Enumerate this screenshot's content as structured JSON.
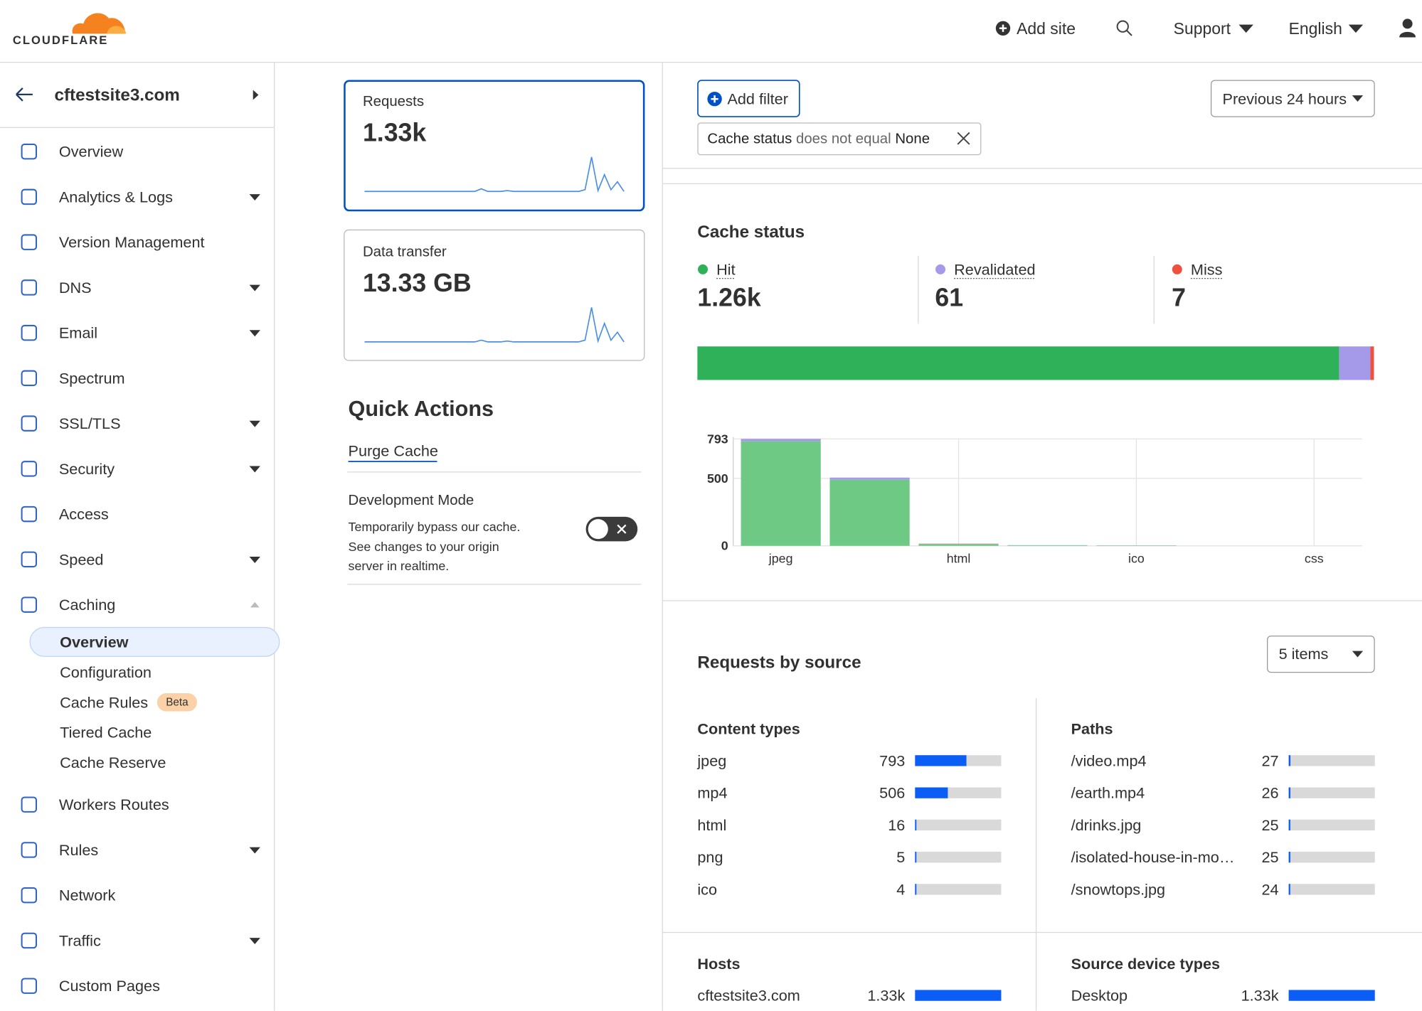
{
  "header": {
    "brand": "CLOUDFLARE",
    "nav": [
      "Add site",
      "Support",
      "English"
    ]
  },
  "sidebar": {
    "site": "cftestsite3.com",
    "items": [
      {
        "label": "Overview"
      },
      {
        "label": "Analytics & Logs",
        "menu": true
      },
      {
        "label": "Version Management"
      },
      {
        "label": "DNS",
        "menu": true
      },
      {
        "label": "Email",
        "menu": true
      },
      {
        "label": "Spectrum"
      },
      {
        "label": "SSL/TLS",
        "menu": true
      },
      {
        "label": "Security",
        "menu": true
      },
      {
        "label": "Access"
      },
      {
        "label": "Speed",
        "menu": true
      },
      {
        "label": "Caching",
        "menu": true,
        "open": true,
        "children": [
          {
            "label": "Overview",
            "active": true
          },
          {
            "label": "Configuration"
          },
          {
            "label": "Cache Rules",
            "badge": "Beta"
          },
          {
            "label": "Tiered Cache"
          },
          {
            "label": "Cache Reserve"
          }
        ]
      },
      {
        "label": "Workers Routes"
      },
      {
        "label": "Rules",
        "menu": true
      },
      {
        "label": "Network"
      },
      {
        "label": "Traffic",
        "menu": true
      },
      {
        "label": "Custom Pages"
      }
    ]
  },
  "metrics": [
    {
      "label": "Requests",
      "value": "1.33k",
      "selected": true,
      "sparkline": [
        1,
        1,
        1,
        1,
        1,
        1,
        1,
        1,
        1,
        1,
        1,
        1,
        1,
        1,
        1,
        1,
        1,
        1,
        4,
        1,
        1,
        1,
        2,
        1,
        1,
        1,
        1,
        1,
        1,
        1,
        1,
        1,
        1,
        1,
        3,
        40,
        2,
        20,
        3,
        12,
        1
      ]
    },
    {
      "label": "Data transfer",
      "value": "13.33 GB",
      "selected": false,
      "sparkline": [
        1,
        1,
        1,
        1,
        1,
        1,
        1,
        1,
        1,
        1,
        1,
        1,
        1,
        1,
        1,
        1,
        1,
        1,
        3,
        1,
        1,
        1,
        2,
        1,
        1,
        1,
        1,
        1,
        1,
        1,
        1,
        1,
        1,
        1,
        3,
        40,
        2,
        22,
        3,
        12,
        1
      ]
    }
  ],
  "quick_actions": {
    "title": "Quick Actions",
    "link": "Purge Cache",
    "dev_mode": {
      "title": "Development Mode",
      "description": [
        "Temporarily bypass our cache.",
        "See changes to your origin",
        "server in realtime."
      ],
      "enabled": false
    }
  },
  "filters": {
    "add": "Add filter",
    "chip": {
      "field": "Cache status",
      "operator": "does not equal",
      "value": "None"
    },
    "range": "Previous 24 hours"
  },
  "cache_status": {
    "title": "Cache status",
    "names": [
      "Hit",
      "Revalidated",
      "Miss"
    ],
    "colors": [
      "#2fb15a",
      "#a599e9",
      "#f0513f"
    ],
    "values": [
      1260,
      61,
      7
    ],
    "value_labels": [
      "1.26k",
      "61",
      "7"
    ]
  },
  "cache_chart": {
    "type": "bar",
    "stacked": true,
    "categories": [
      "jpeg",
      null,
      "html",
      null,
      "ico",
      null,
      "css"
    ],
    "series": [
      {
        "name": "Hit",
        "color": "#6dc983",
        "values": [
          775,
          490,
          12,
          4,
          3,
          0,
          0
        ]
      },
      {
        "name": "Revalidated",
        "color": "#a599e9",
        "values": [
          18,
          16,
          2,
          1,
          1,
          0,
          0
        ]
      },
      {
        "name": "Miss",
        "color": "#f0654f",
        "values": [
          0,
          0,
          2,
          0,
          0,
          0,
          0
        ]
      }
    ],
    "ylim": [
      0,
      793
    ],
    "yticks": [
      0,
      500,
      793
    ],
    "grid": true
  },
  "requests_by_source": {
    "title": "Requests by source",
    "limit": "5 items",
    "groups": [
      {
        "title": "Content types",
        "labels": [
          "jpeg",
          "mp4",
          "html",
          "png",
          "ico"
        ],
        "values": [
          793,
          506,
          16,
          5,
          4
        ]
      },
      {
        "title": "Paths",
        "labels": [
          "/video.mp4",
          "/earth.mp4",
          "/drinks.jpg",
          "/isolated-house-in-mo…",
          "/snowtops.jpg"
        ],
        "values": [
          27,
          26,
          25,
          25,
          24
        ]
      },
      {
        "title": "Hosts",
        "labels": [
          "cftestsite3.com"
        ],
        "values": [
          1330
        ],
        "value_labels": [
          "1.33k"
        ]
      },
      {
        "title": "Source device types",
        "labels": [
          "Desktop"
        ],
        "values": [
          1330
        ],
        "value_labels": [
          "1.33k"
        ]
      }
    ]
  }
}
